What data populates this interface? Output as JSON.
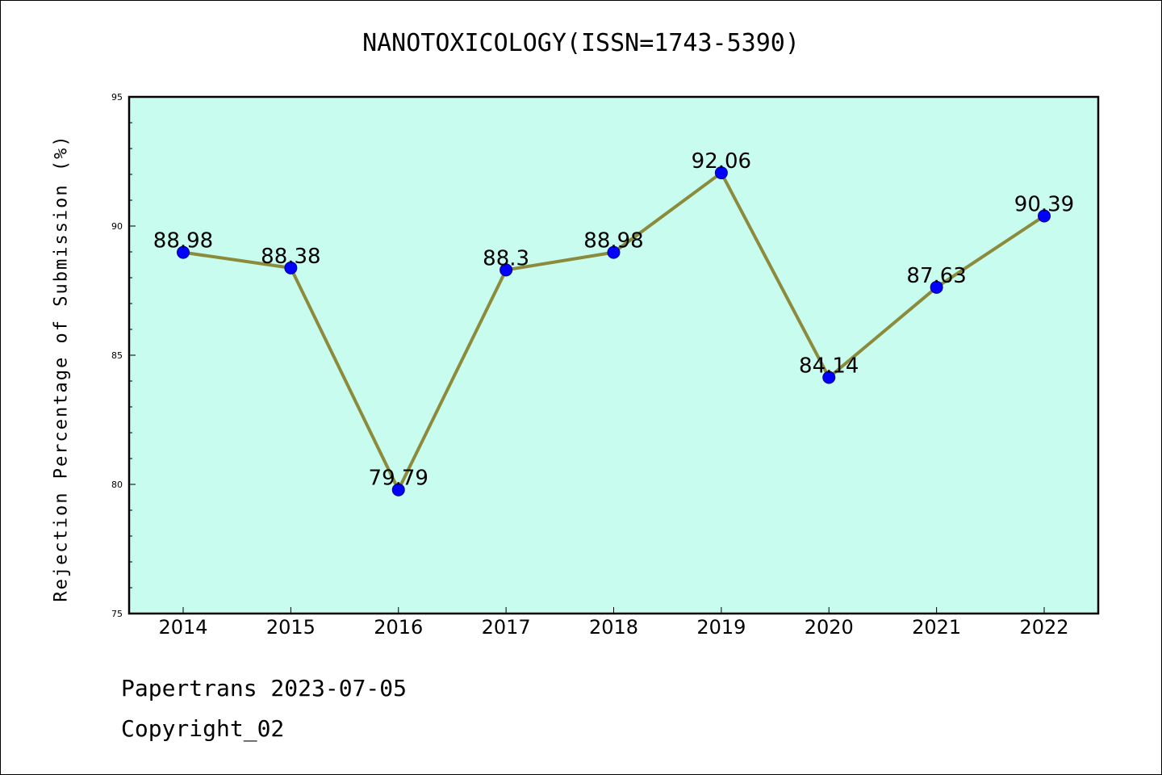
{
  "chart_data": {
    "type": "line",
    "title": "NANOTOXICOLOGY(ISSN=1743-5390)",
    "ylabel": "Rejection Percentage of Submission (%)",
    "xlabel": "",
    "categories": [
      "2014",
      "2015",
      "2016",
      "2017",
      "2018",
      "2019",
      "2020",
      "2021",
      "2022"
    ],
    "series": [
      {
        "values": [
          88.98,
          88.38,
          79.79,
          88.3,
          88.98,
          92.06,
          84.14,
          87.63,
          90.39
        ],
        "labels": [
          "88.98",
          "88.38",
          "79.79",
          "88.3",
          "88.98",
          "92.06",
          "84.14",
          "87.63",
          "90.39"
        ]
      }
    ],
    "ylim": [
      75,
      95
    ],
    "yticks": [
      "75",
      "80",
      "85",
      "90",
      "95"
    ],
    "grid": false,
    "colors": {
      "plot_background": "#c8fcee",
      "line": "#8b8b3b",
      "marker": "#0000ff"
    }
  },
  "footer": {
    "line1": "Papertrans 2023-07-05",
    "line2": "Copyright_02"
  }
}
